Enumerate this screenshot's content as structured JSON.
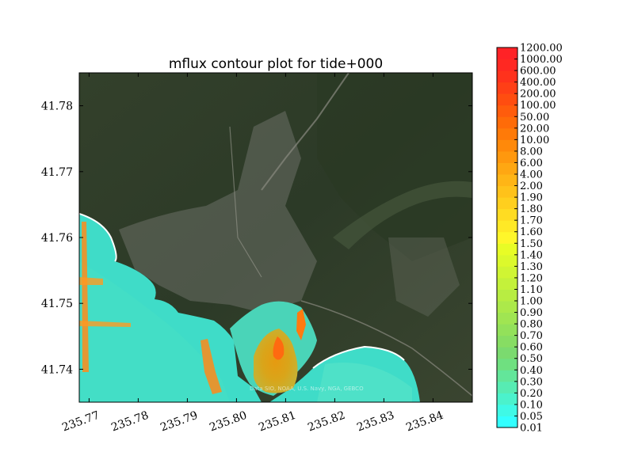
{
  "chart_data": {
    "type": "heatmap",
    "title": "mflux contour plot for tide+000",
    "xlabel": "",
    "ylabel": "",
    "xlim": [
      235.768,
      235.848
    ],
    "ylim": [
      41.735,
      41.785
    ],
    "x_ticks": [
      {
        "value": 235.77,
        "label": "235.77"
      },
      {
        "value": 235.78,
        "label": "235.78"
      },
      {
        "value": 235.79,
        "label": "235.79"
      },
      {
        "value": 235.8,
        "label": "235.80"
      },
      {
        "value": 235.81,
        "label": "235.81"
      },
      {
        "value": 235.82,
        "label": "235.82"
      },
      {
        "value": 235.83,
        "label": "235.83"
      },
      {
        "value": 235.84,
        "label": "235.84"
      }
    ],
    "y_ticks": [
      {
        "value": 41.74,
        "label": "41.74"
      },
      {
        "value": 41.75,
        "label": "41.75"
      },
      {
        "value": 41.76,
        "label": "41.76"
      },
      {
        "value": 41.77,
        "label": "41.77"
      },
      {
        "value": 41.78,
        "label": "41.78"
      }
    ],
    "background": "satellite imagery",
    "attribution": "Data SIO, NOAA, U.S. Navy, NGA, GEBCO",
    "colorbar": {
      "levels": [
        "0.01",
        "0.05",
        "0.10",
        "0.20",
        "0.30",
        "0.40",
        "0.50",
        "0.60",
        "0.70",
        "0.80",
        "0.90",
        "1.00",
        "1.10",
        "1.20",
        "1.30",
        "1.40",
        "1.50",
        "1.60",
        "1.70",
        "1.80",
        "1.90",
        "2.00",
        "4.00",
        "6.00",
        "8.00",
        "10.00",
        "20.00",
        "50.00",
        "100.00",
        "200.00",
        "400.00",
        "600.00",
        "1000.00",
        "1200.00"
      ],
      "colors": [
        "#33ffff",
        "#3ff9e6",
        "#4bf2cc",
        "#57ecb3",
        "#63e69a",
        "#6fe080",
        "#7bda6f",
        "#87dd63",
        "#93e15a",
        "#a0e552",
        "#ace94a",
        "#b8ed42",
        "#c4f13a",
        "#d0f533",
        "#dcf92c",
        "#e8fc26",
        "#fff62a",
        "#ffe926",
        "#ffdc22",
        "#ffcf1e",
        "#ffc21a",
        "#ffb516",
        "#ffa712",
        "#ff980e",
        "#ff890a",
        "#ff7a08",
        "#ff6b08",
        "#ff5c0c",
        "#ff4d10",
        "#ff3f16",
        "#ff321c",
        "#ff2822",
        "#ff2226"
      ],
      "high_color": "#ff3030"
    }
  }
}
